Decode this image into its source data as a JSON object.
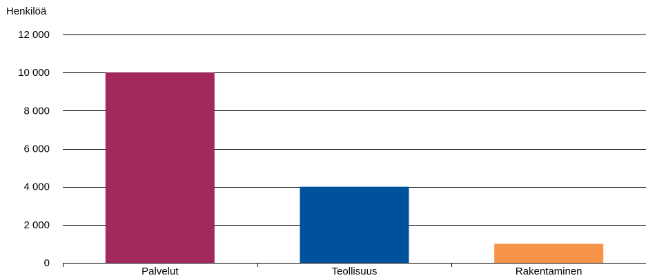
{
  "chart_data": {
    "type": "bar",
    "ylabel": "Henkilöä",
    "categories": [
      "Palvelut",
      "Teollisuus",
      "Rakentaminen"
    ],
    "values": [
      10000,
      4000,
      1000
    ],
    "colors": [
      "#A3285C",
      "#00519C",
      "#F7944A"
    ],
    "ylim": [
      0,
      12000
    ],
    "yticks": [
      0,
      2000,
      4000,
      6000,
      8000,
      10000,
      12000
    ],
    "ytick_labels": [
      "0",
      "2 000",
      "4 000",
      "6 000",
      "8 000",
      "10 000",
      "12 000"
    ],
    "grid": true,
    "grid_color": "#000000"
  }
}
